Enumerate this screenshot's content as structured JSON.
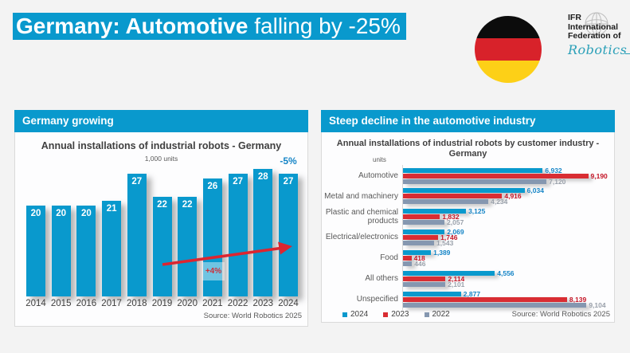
{
  "page": {
    "background": "#f3f3f3"
  },
  "title_banner": {
    "bold_text": "Germany: Automotive",
    "regular_text": " falling by -25%",
    "bg_color": "#0999cd",
    "text_color": "#ffffff"
  },
  "flag": {
    "country": "Germany",
    "stripe_colors": [
      "#0c0c0c",
      "#d8222a",
      "#fdd017"
    ]
  },
  "logo": {
    "line1": "IFR",
    "line2": "International",
    "line3": "Federation of",
    "script": "Robotics",
    "script_color": "#2ba0b8"
  },
  "left_panel": {
    "header": "Germany growing",
    "header_bg": "#0999cd",
    "title": "Annual installations of industrial robots - Germany",
    "subtitle": "1,000 units",
    "annotation_last_bar": "-5%",
    "annotation_trend": "+4%",
    "source": "Source: World Robotics 2025"
  },
  "right_panel": {
    "header": "Steep decline in the automotive industry",
    "header_bg": "#0999cd",
    "title_line1": "Annual installations of industrial robots by customer industry -",
    "title_line2": "Germany",
    "units_label": "units",
    "source": "Source: World Robotics 2025",
    "legend": [
      {
        "label": "2024",
        "color": "#0999cd"
      },
      {
        "label": "2023",
        "color": "#d92d33"
      },
      {
        "label": "2022",
        "color": "#8597b0"
      }
    ]
  },
  "chart_data": [
    {
      "type": "bar",
      "title": "Annual installations of industrial robots - Germany",
      "subtitle": "1,000 units",
      "ylabel": "1,000 units",
      "categories": [
        "2014",
        "2015",
        "2016",
        "2017",
        "2018",
        "2019",
        "2020",
        "2021",
        "2022",
        "2023",
        "2024"
      ],
      "values": [
        20,
        20,
        20,
        21,
        27,
        22,
        22,
        26,
        27,
        28,
        27
      ],
      "bar_color": "#0999cd",
      "value_label_color": "#ffffff",
      "ylim": [
        0,
        30
      ],
      "grid": false,
      "annotations": [
        {
          "text": "-5%",
          "target": "2024",
          "color": "#1484c6"
        },
        {
          "text": "+4%",
          "target": "2021",
          "color": "#cf2e38",
          "kind": "trend-arrow-label"
        }
      ],
      "source": "Source: World Robotics 2025"
    },
    {
      "type": "bar",
      "orientation": "horizontal",
      "title": "Annual installations of industrial robots by customer industry - Germany",
      "xlabel": "units",
      "categories": [
        "Automotive",
        "Metal and machinery",
        "Plastic and chemical products",
        "Electrical/electronics",
        "Food",
        "All others",
        "Unspecified"
      ],
      "series": [
        {
          "name": "2024",
          "color": "#0999cd",
          "label_color": "#1484c6",
          "values": [
            6932,
            6034,
            3125,
            2069,
            1389,
            4556,
            2877
          ]
        },
        {
          "name": "2023",
          "color": "#d92d33",
          "label_color": "#c41425",
          "values": [
            9190,
            4916,
            1832,
            1746,
            418,
            2114,
            8139
          ]
        },
        {
          "name": "2022",
          "color": "#8597b0",
          "label_color": "#9aa1ab",
          "values": [
            7120,
            4234,
            2057,
            1543,
            446,
            2101,
            9104
          ]
        }
      ],
      "xlim": [
        0,
        10000
      ],
      "grid": false,
      "legend_position": "bottom-left",
      "source": "Source: World Robotics 2025"
    }
  ]
}
